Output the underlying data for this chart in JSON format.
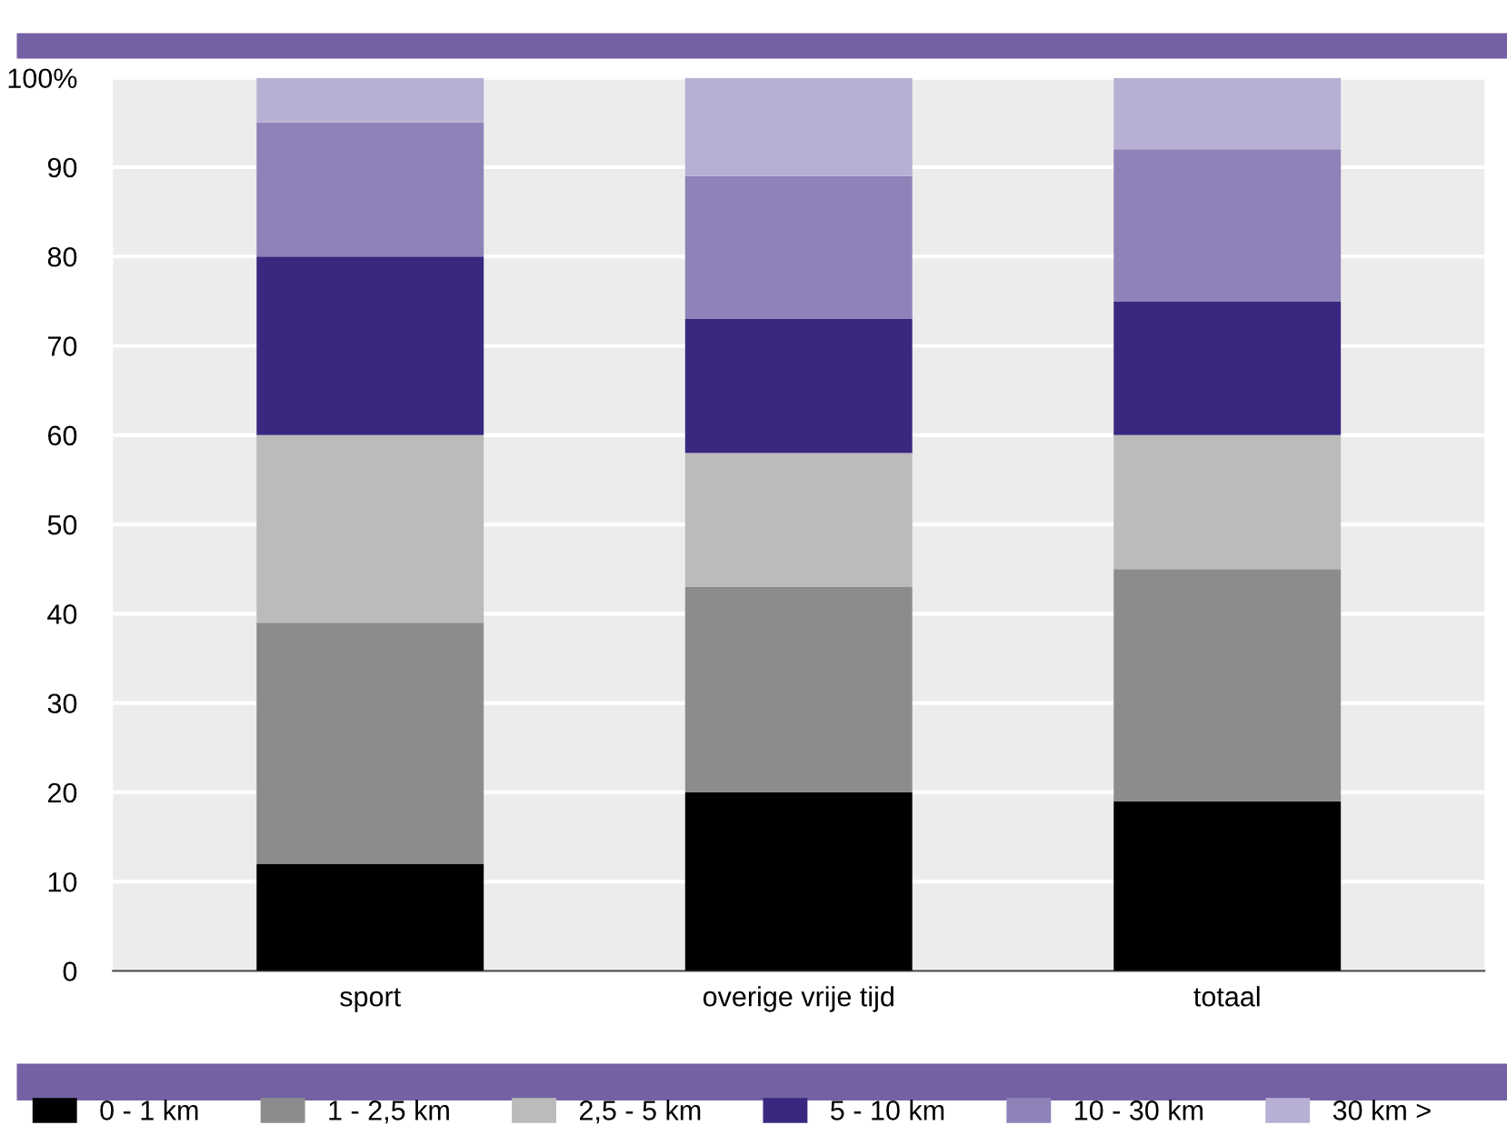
{
  "chart_data": {
    "type": "bar",
    "stacked": true,
    "categories": [
      "sport",
      "overige vrije tijd",
      "totaal"
    ],
    "series": [
      {
        "name": "0 - 1 km",
        "color": "#000000",
        "values": [
          12,
          20,
          19
        ]
      },
      {
        "name": "1 - 2,5 km",
        "color": "#8c8c8c",
        "values": [
          27,
          23,
          26
        ]
      },
      {
        "name": "2,5 - 5 km",
        "color": "#bbbbbb",
        "values": [
          21,
          15,
          15
        ]
      },
      {
        "name": "5 - 10 km",
        "color": "#3a2880",
        "values": [
          20,
          15,
          15
        ]
      },
      {
        "name": "10 - 30 km",
        "color": "#8e82b8",
        "values": [
          15,
          16,
          17
        ]
      },
      {
        "name": "30 km >",
        "color": "#b8afd4",
        "values": [
          5,
          11,
          8
        ]
      }
    ],
    "ylim": [
      0,
      100
    ],
    "yticks": [
      0,
      10,
      20,
      30,
      40,
      50,
      60,
      70,
      80,
      90,
      {
        "value": 100,
        "label": "100%"
      }
    ],
    "grid": "y",
    "legend": "bottom"
  }
}
